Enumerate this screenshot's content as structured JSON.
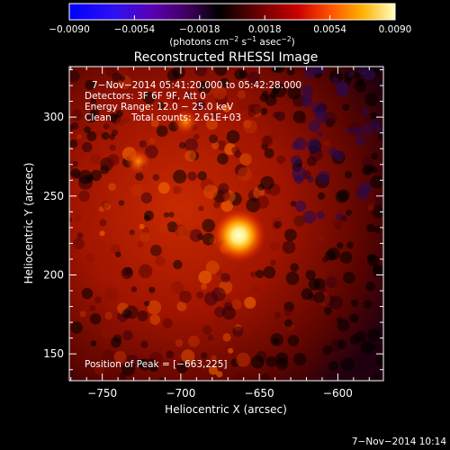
{
  "chart_data": {
    "type": "heatmap",
    "title": "Reconstructed RHESSI Image",
    "xlabel": "Heliocentric X (arcsec)",
    "ylabel": "Heliocentric Y (arcsec)",
    "xlim": [
      -771,
      -571
    ],
    "ylim": [
      133,
      332
    ],
    "xticks": [
      -750,
      -700,
      -650,
      -600
    ],
    "yticks": [
      150,
      200,
      250,
      300
    ],
    "colorbar": {
      "ticks": [
        -0.009,
        -0.0054,
        -0.0018,
        0.0018,
        0.0054,
        0.009
      ],
      "tick_labels": [
        "−0.0090",
        "−0.0054",
        "−0.0018",
        "0.0018",
        "0.0054",
        "0.0090"
      ],
      "range": [
        -0.009,
        0.009
      ],
      "unit_label": "(photons cm",
      "unit_sup1": "−2",
      "unit_mid": " s",
      "unit_sup2": "−1",
      "unit_mid2": " asec",
      "unit_sup3": "−2",
      "unit_end": ")"
    },
    "peak": {
      "x": -663,
      "y": 225
    },
    "secondary_sources": [
      {
        "x": -727,
        "y": 272
      },
      {
        "x": -697,
        "y": 297
      }
    ],
    "annotations": {
      "time_range": "7−Nov−2014 05:41:20.000 to 05:42:28.000",
      "detectors": "Detectors: 3F 6F 9F, Att 0",
      "energy": "Energy Range: 12.0 − 25.0 keV",
      "clean_label": "Clean",
      "total_counts": "Total counts: 2.61E+03",
      "position_of_peak": "Position of Peak = [−663,225]"
    }
  },
  "timestamp": "7−Nov−2014 10:14"
}
